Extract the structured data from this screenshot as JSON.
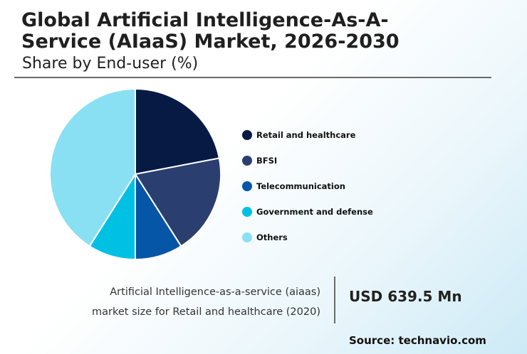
{
  "header": {
    "title": "Global Artificial Intelligence-As-A-Service (AIaaS) Market, 2026-2030",
    "subtitle": "Share by End-user (%)"
  },
  "chart_data": {
    "type": "pie",
    "categories": [
      "Retail and healthcare",
      "BFSI",
      "Telecommunication",
      "Government and defense",
      "Others"
    ],
    "values": [
      22,
      19,
      9,
      9,
      41
    ],
    "colors": [
      "#061a44",
      "#2a3e70",
      "#0656a8",
      "#00c1e4",
      "#8ae0f3"
    ],
    "legend_position": "right"
  },
  "footer": {
    "description_line1": "Artificial Intelligence-as-a-service (aiaas)",
    "description_line2": "market size for Retail and healthcare (2020)",
    "value": "USD 639.5 Mn",
    "source": "Source: technavio.com"
  }
}
